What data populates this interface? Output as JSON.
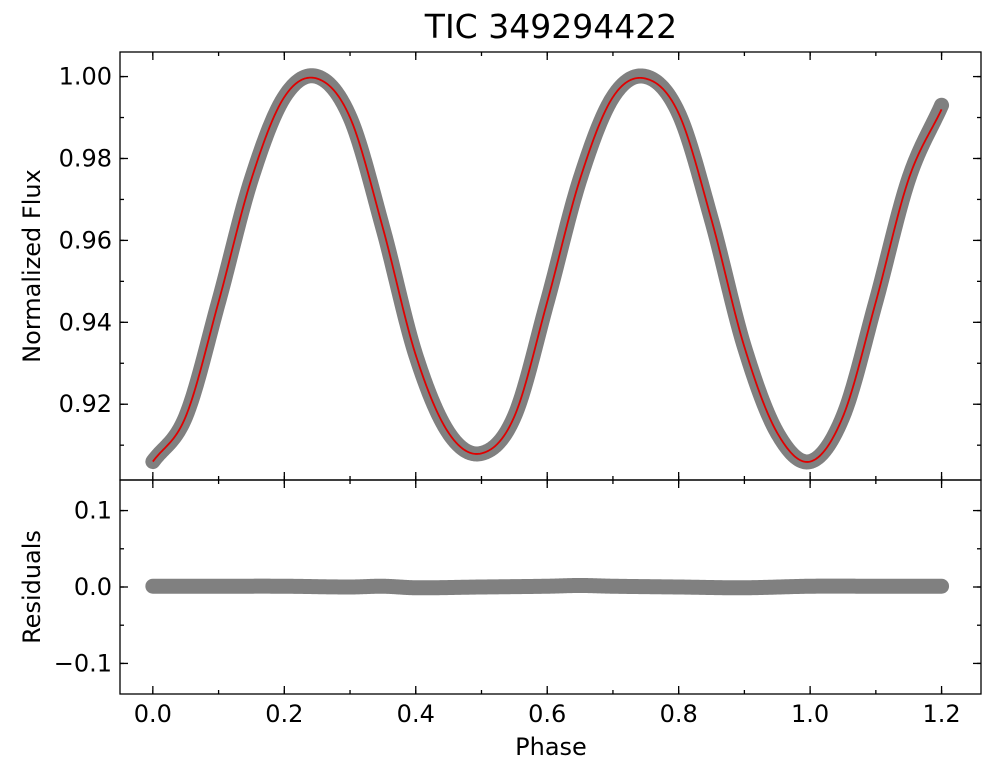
{
  "chart_data": {
    "type": "scatter",
    "title": "TIC 349294422",
    "xlabel": "Phase",
    "xlim": [
      -0.05,
      1.26
    ],
    "x_ticks": [
      {
        "value": 0.0,
        "label": "0.0"
      },
      {
        "value": 0.2,
        "label": "0.2"
      },
      {
        "value": 0.4,
        "label": "0.4"
      },
      {
        "value": 0.6,
        "label": "0.6"
      },
      {
        "value": 0.8,
        "label": "0.8"
      },
      {
        "value": 1.0,
        "label": "1.0"
      },
      {
        "value": 1.2,
        "label": "1.2"
      }
    ],
    "x_minor_step": 0.1,
    "point_color": "#808080",
    "model_color": "#e00000",
    "panels": [
      {
        "id": "flux",
        "ylabel": "Normalized Flux",
        "ylim": [
          0.9015,
          1.006
        ],
        "y_ticks": [
          {
            "value": 0.92,
            "label": "0.92"
          },
          {
            "value": 0.94,
            "label": "0.94"
          },
          {
            "value": 0.96,
            "label": "0.96"
          },
          {
            "value": 0.98,
            "label": "0.98"
          },
          {
            "value": 1.0,
            "label": "1.00"
          }
        ],
        "y_minor_step": 0.01,
        "series": [
          {
            "kind": "points",
            "x": [
              0.0,
              0.05,
              0.1,
              0.15,
              0.2,
              0.25,
              0.3,
              0.35,
              0.4,
              0.45,
              0.5,
              0.55,
              0.6,
              0.65,
              0.7,
              0.75,
              0.8,
              0.85,
              0.9,
              0.95,
              1.0,
              1.05,
              1.1,
              1.15,
              1.2
            ],
            "y": [
              0.906,
              0.917,
              0.945,
              0.975,
              0.995,
              1.0,
              0.99,
              0.963,
              0.932,
              0.913,
              0.908,
              0.917,
              0.945,
              0.975,
              0.995,
              1.0,
              0.991,
              0.965,
              0.934,
              0.913,
              0.906,
              0.917,
              0.945,
              0.975,
              0.993
            ]
          },
          {
            "kind": "model",
            "x": [
              0.0,
              0.05,
              0.1,
              0.15,
              0.2,
              0.25,
              0.3,
              0.35,
              0.4,
              0.45,
              0.5,
              0.55,
              0.6,
              0.65,
              0.7,
              0.75,
              0.8,
              0.85,
              0.9,
              0.95,
              1.0,
              1.05,
              1.1,
              1.15,
              1.2
            ],
            "y": [
              0.906,
              0.917,
              0.945,
              0.975,
              0.995,
              0.9995,
              0.99,
              0.963,
              0.932,
              0.913,
              0.908,
              0.917,
              0.945,
              0.975,
              0.995,
              0.9995,
              0.991,
              0.965,
              0.934,
              0.913,
              0.906,
              0.917,
              0.945,
              0.975,
              0.992
            ]
          }
        ]
      },
      {
        "id": "residuals",
        "ylabel": "Residuals",
        "ylim": [
          -0.14,
          0.14
        ],
        "y_ticks": [
          {
            "value": -0.1,
            "label": "−0.1"
          },
          {
            "value": 0.0,
            "label": "0.0"
          },
          {
            "value": 0.1,
            "label": "0.1"
          }
        ],
        "y_minor_step": 0.05,
        "series": [
          {
            "kind": "points",
            "x": [
              0.0,
              0.1,
              0.2,
              0.3,
              0.35,
              0.4,
              0.5,
              0.6,
              0.65,
              0.7,
              0.8,
              0.9,
              1.0,
              1.1,
              1.2
            ],
            "y": [
              0.001,
              0.001,
              0.001,
              0.0,
              0.001,
              -0.001,
              0.0,
              0.001,
              0.002,
              0.001,
              0.0,
              -0.001,
              0.001,
              0.001,
              0.001
            ]
          }
        ]
      }
    ]
  }
}
